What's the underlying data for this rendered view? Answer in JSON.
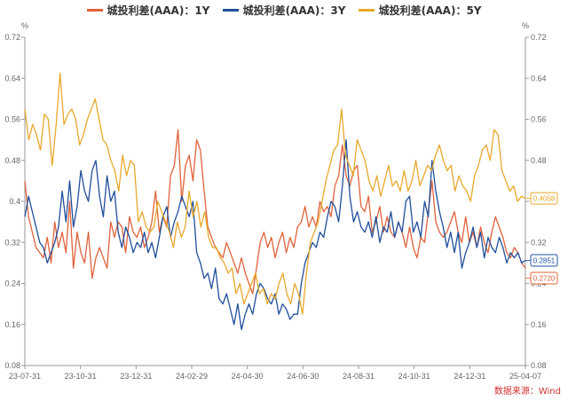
{
  "legend": {
    "items": [
      {
        "label": "城投利差(AAA)：1Y",
        "color": "#e0623a"
      },
      {
        "label": "城投利差(AAA)：3Y",
        "color": "#1f4e9c"
      },
      {
        "label": "城投利差(AAA)：5Y",
        "color": "#e8a82a"
      }
    ]
  },
  "source_text": "数据来源：Wind",
  "chart_data": {
    "type": "line",
    "title": "",
    "xlabel": "",
    "ylabel": "%",
    "y2label": "%",
    "ylim": [
      0.08,
      0.72
    ],
    "yticks": [
      "0.72",
      "0.64",
      "0.56",
      "0.48",
      "0.4",
      "0.32",
      "0.24",
      "0.16",
      "0.08"
    ],
    "y2ticks": [
      "0.72",
      "0.64",
      "0.56",
      "0.48",
      "0.40",
      "0.32",
      "0.24",
      "0.16",
      "0.08"
    ],
    "xticks": [
      "23-07-31",
      "23-10-31",
      "23-12-31",
      "24-02-29",
      "24-04-30",
      "24-06-30",
      "24-08-31",
      "24-10-31",
      "24-12-31",
      "25-04-07"
    ],
    "grid": false,
    "legend_position": "top-center",
    "end_labels": [
      {
        "text": "0.4058",
        "series": "城投利差(AAA)：5Y"
      },
      {
        "text": "0.2851",
        "series": "城投利差(AAA)：3Y"
      },
      {
        "text": "0.2720",
        "series": "城投利差(AAA)：1Y"
      }
    ],
    "series": [
      {
        "name": "城投利差(AAA)：1Y",
        "color": "#e0623a",
        "values": [
          0.44,
          0.37,
          0.34,
          0.31,
          0.3,
          0.29,
          0.33,
          0.28,
          0.36,
          0.31,
          0.34,
          0.3,
          0.4,
          0.27,
          0.34,
          0.3,
          0.28,
          0.34,
          0.25,
          0.29,
          0.31,
          0.29,
          0.27,
          0.36,
          0.33,
          0.36,
          0.35,
          0.3,
          0.37,
          0.34,
          0.33,
          0.35,
          0.31,
          0.33,
          0.36,
          0.42,
          0.34,
          0.37,
          0.35,
          0.45,
          0.47,
          0.54,
          0.4,
          0.47,
          0.49,
          0.44,
          0.52,
          0.5,
          0.42,
          0.35,
          0.33,
          0.31,
          0.3,
          0.29,
          0.32,
          0.3,
          0.28,
          0.26,
          0.29,
          0.26,
          0.24,
          0.22,
          0.27,
          0.32,
          0.34,
          0.31,
          0.33,
          0.29,
          0.32,
          0.34,
          0.3,
          0.33,
          0.31,
          0.35,
          0.36,
          0.39,
          0.35,
          0.37,
          0.35,
          0.4,
          0.38,
          0.39,
          0.37,
          0.43,
          0.45,
          0.51,
          0.45,
          0.43,
          0.46,
          0.47,
          0.39,
          0.38,
          0.41,
          0.34,
          0.36,
          0.39,
          0.34,
          0.37,
          0.34,
          0.33,
          0.36,
          0.34,
          0.31,
          0.35,
          0.31,
          0.29,
          0.33,
          0.32,
          0.38,
          0.44,
          0.36,
          0.34,
          0.33,
          0.34,
          0.36,
          0.38,
          0.34,
          0.32,
          0.37,
          0.32,
          0.34,
          0.31,
          0.35,
          0.32,
          0.3,
          0.34,
          0.37,
          0.35,
          0.33,
          0.3,
          0.29,
          0.31,
          0.3,
          0.28,
          0.27
        ]
      },
      {
        "name": "城投利差(AAA)：3Y",
        "color": "#1f4e9c",
        "values": [
          0.37,
          0.41,
          0.38,
          0.35,
          0.32,
          0.31,
          0.28,
          0.3,
          0.32,
          0.35,
          0.42,
          0.36,
          0.44,
          0.35,
          0.39,
          0.46,
          0.42,
          0.4,
          0.46,
          0.48,
          0.41,
          0.37,
          0.45,
          0.4,
          0.42,
          0.34,
          0.31,
          0.35,
          0.33,
          0.3,
          0.32,
          0.31,
          0.34,
          0.3,
          0.32,
          0.29,
          0.33,
          0.37,
          0.39,
          0.33,
          0.36,
          0.38,
          0.41,
          0.39,
          0.37,
          0.4,
          0.3,
          0.28,
          0.25,
          0.26,
          0.23,
          0.27,
          0.21,
          0.2,
          0.22,
          0.19,
          0.16,
          0.2,
          0.15,
          0.18,
          0.2,
          0.18,
          0.22,
          0.24,
          0.23,
          0.21,
          0.2,
          0.22,
          0.18,
          0.2,
          0.19,
          0.17,
          0.18,
          0.18,
          0.24,
          0.28,
          0.3,
          0.32,
          0.31,
          0.34,
          0.33,
          0.37,
          0.4,
          0.39,
          0.36,
          0.43,
          0.52,
          0.41,
          0.36,
          0.38,
          0.35,
          0.34,
          0.36,
          0.33,
          0.37,
          0.32,
          0.35,
          0.34,
          0.38,
          0.33,
          0.36,
          0.34,
          0.4,
          0.41,
          0.34,
          0.36,
          0.33,
          0.4,
          0.37,
          0.48,
          0.42,
          0.38,
          0.35,
          0.31,
          0.34,
          0.3,
          0.34,
          0.27,
          0.3,
          0.32,
          0.35,
          0.31,
          0.34,
          0.29,
          0.33,
          0.31,
          0.3,
          0.33,
          0.31,
          0.28,
          0.3,
          0.29,
          0.3,
          0.28,
          0.285
        ]
      },
      {
        "name": "城投利差(AAA)：5Y",
        "color": "#e8a82a",
        "values": [
          0.58,
          0.52,
          0.55,
          0.53,
          0.5,
          0.57,
          0.56,
          0.47,
          0.55,
          0.65,
          0.55,
          0.57,
          0.58,
          0.56,
          0.51,
          0.53,
          0.56,
          0.58,
          0.6,
          0.56,
          0.52,
          0.51,
          0.48,
          0.46,
          0.42,
          0.49,
          0.45,
          0.48,
          0.47,
          0.36,
          0.38,
          0.35,
          0.34,
          0.35,
          0.4,
          0.38,
          0.36,
          0.34,
          0.31,
          0.36,
          0.33,
          0.35,
          0.42,
          0.37,
          0.4,
          0.35,
          0.38,
          0.33,
          0.31,
          0.31,
          0.29,
          0.28,
          0.26,
          0.27,
          0.22,
          0.24,
          0.2,
          0.22,
          0.24,
          0.26,
          0.22,
          0.23,
          0.2,
          0.22,
          0.21,
          0.24,
          0.26,
          0.22,
          0.2,
          0.24,
          0.22,
          0.18,
          0.26,
          0.32,
          0.34,
          0.36,
          0.4,
          0.44,
          0.47,
          0.5,
          0.51,
          0.58,
          0.49,
          0.47,
          0.45,
          0.52,
          0.5,
          0.48,
          0.44,
          0.42,
          0.45,
          0.41,
          0.44,
          0.47,
          0.43,
          0.44,
          0.42,
          0.46,
          0.42,
          0.44,
          0.48,
          0.43,
          0.45,
          0.47,
          0.46,
          0.49,
          0.51,
          0.48,
          0.46,
          0.47,
          0.42,
          0.45,
          0.43,
          0.42,
          0.4,
          0.45,
          0.47,
          0.5,
          0.51,
          0.48,
          0.54,
          0.53,
          0.46,
          0.44,
          0.42,
          0.43,
          0.4,
          0.41,
          0.4058
        ]
      }
    ]
  }
}
